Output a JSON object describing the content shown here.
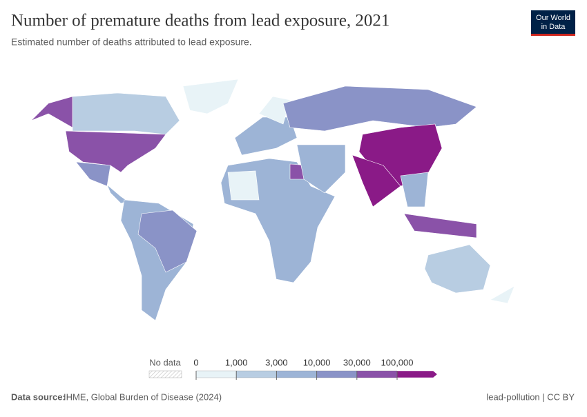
{
  "header": {
    "title": "Number of premature deaths from lead exposure, 2021",
    "subtitle": "Estimated number of deaths attributed to lead exposure.",
    "logo": [
      "Our World",
      "in Data"
    ]
  },
  "legend": {
    "no_data": "No data",
    "ticks": [
      0,
      {
        "value": 1000,
        "label": "1,000"
      },
      {
        "value": 3000,
        "label": "3,000"
      },
      {
        "value": 10000,
        "label": "10,000"
      },
      {
        "value": 30000,
        "label": "30,000"
      },
      {
        "value": 100000,
        "label": "100,000"
      }
    ],
    "colors": [
      "#e8f3f7",
      "#b8cde2",
      "#9db4d6",
      "#8a93c7",
      "#8a52a8",
      "#8a1a87"
    ]
  },
  "footer": {
    "source_label": "Data source:",
    "source": "IHME, Global Burden of Disease (2024)",
    "slug": "lead-pollution | CC BY"
  }
}
